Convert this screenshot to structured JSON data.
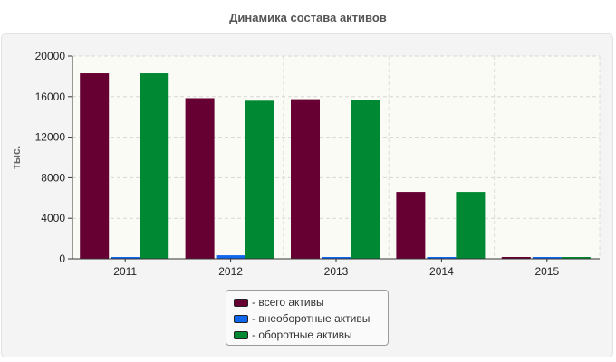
{
  "chart_data": {
    "type": "bar",
    "title": "Динамика состава активов",
    "ylabel": "тыс.",
    "xlabel": "",
    "categories": [
      "2011",
      "2012",
      "2013",
      "2014",
      "2015"
    ],
    "ylim": [
      0,
      20000
    ],
    "yticks": [
      "0",
      "4000",
      "8000",
      "12000",
      "16000",
      "20000"
    ],
    "grid": true,
    "legend_position": "bottom",
    "series": [
      {
        "name": "- всего активы",
        "color": "#660033",
        "values": [
          18300,
          15850,
          15750,
          6600,
          150
        ]
      },
      {
        "name": "- внеоборотные активы",
        "color": "#1166ee",
        "values": [
          80,
          350,
          80,
          80,
          50
        ]
      },
      {
        "name": "- оборотные активы",
        "color": "#008833",
        "values": [
          18300,
          15600,
          15700,
          6600,
          150
        ]
      }
    ]
  }
}
